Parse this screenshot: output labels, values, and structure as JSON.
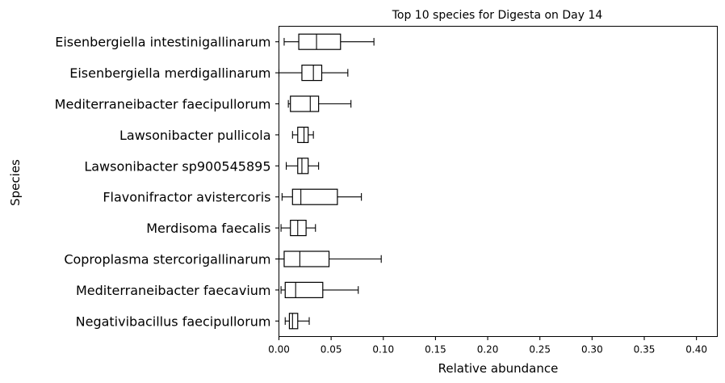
{
  "chart_data": {
    "type": "boxplot",
    "orientation": "horizontal",
    "title": "Top 10 species for Digesta on Day 14",
    "xlabel": "Relative abundance",
    "ylabel": "Species",
    "xlim": [
      0,
      0.42
    ],
    "xticks": [
      0.0,
      0.05,
      0.1,
      0.15,
      0.2,
      0.25,
      0.3,
      0.35,
      0.4
    ],
    "xtick_labels": [
      "0.00",
      "0.05",
      "0.10",
      "0.15",
      "0.20",
      "0.25",
      "0.30",
      "0.35",
      "0.40"
    ],
    "grid": false,
    "series": [
      {
        "name": "Eisenbergiella intestinigallinarum",
        "whisker_low": 0.005,
        "q1": 0.019,
        "median": 0.036,
        "q3": 0.059,
        "whisker_high": 0.091
      },
      {
        "name": "Eisenbergiella merdigallinarum",
        "whisker_low": 0.0,
        "q1": 0.022,
        "median": 0.033,
        "q3": 0.041,
        "whisker_high": 0.066
      },
      {
        "name": "Mediterraneibacter faecipullorum",
        "whisker_low": 0.009,
        "q1": 0.011,
        "median": 0.03,
        "q3": 0.038,
        "whisker_high": 0.069
      },
      {
        "name": "Lawsonibacter pullicola",
        "whisker_low": 0.013,
        "q1": 0.018,
        "median": 0.024,
        "q3": 0.028,
        "whisker_high": 0.033
      },
      {
        "name": "Lawsonibacter sp900545895",
        "whisker_low": 0.007,
        "q1": 0.018,
        "median": 0.022,
        "q3": 0.028,
        "whisker_high": 0.038
      },
      {
        "name": "Flavonifractor avistercoris",
        "whisker_low": 0.003,
        "q1": 0.013,
        "median": 0.021,
        "q3": 0.056,
        "whisker_high": 0.079
      },
      {
        "name": "Merdisoma faecalis",
        "whisker_low": 0.002,
        "q1": 0.011,
        "median": 0.018,
        "q3": 0.026,
        "whisker_high": 0.035
      },
      {
        "name": "Coproplasma stercorigallinarum",
        "whisker_low": 0.0,
        "q1": 0.005,
        "median": 0.02,
        "q3": 0.048,
        "whisker_high": 0.098
      },
      {
        "name": "Mediterraneibacter faecavium",
        "whisker_low": 0.002,
        "q1": 0.006,
        "median": 0.016,
        "q3": 0.042,
        "whisker_high": 0.076
      },
      {
        "name": "Negativibacillus faecipullorum",
        "whisker_low": 0.006,
        "q1": 0.01,
        "median": 0.013,
        "q3": 0.018,
        "whisker_high": 0.029
      }
    ]
  }
}
